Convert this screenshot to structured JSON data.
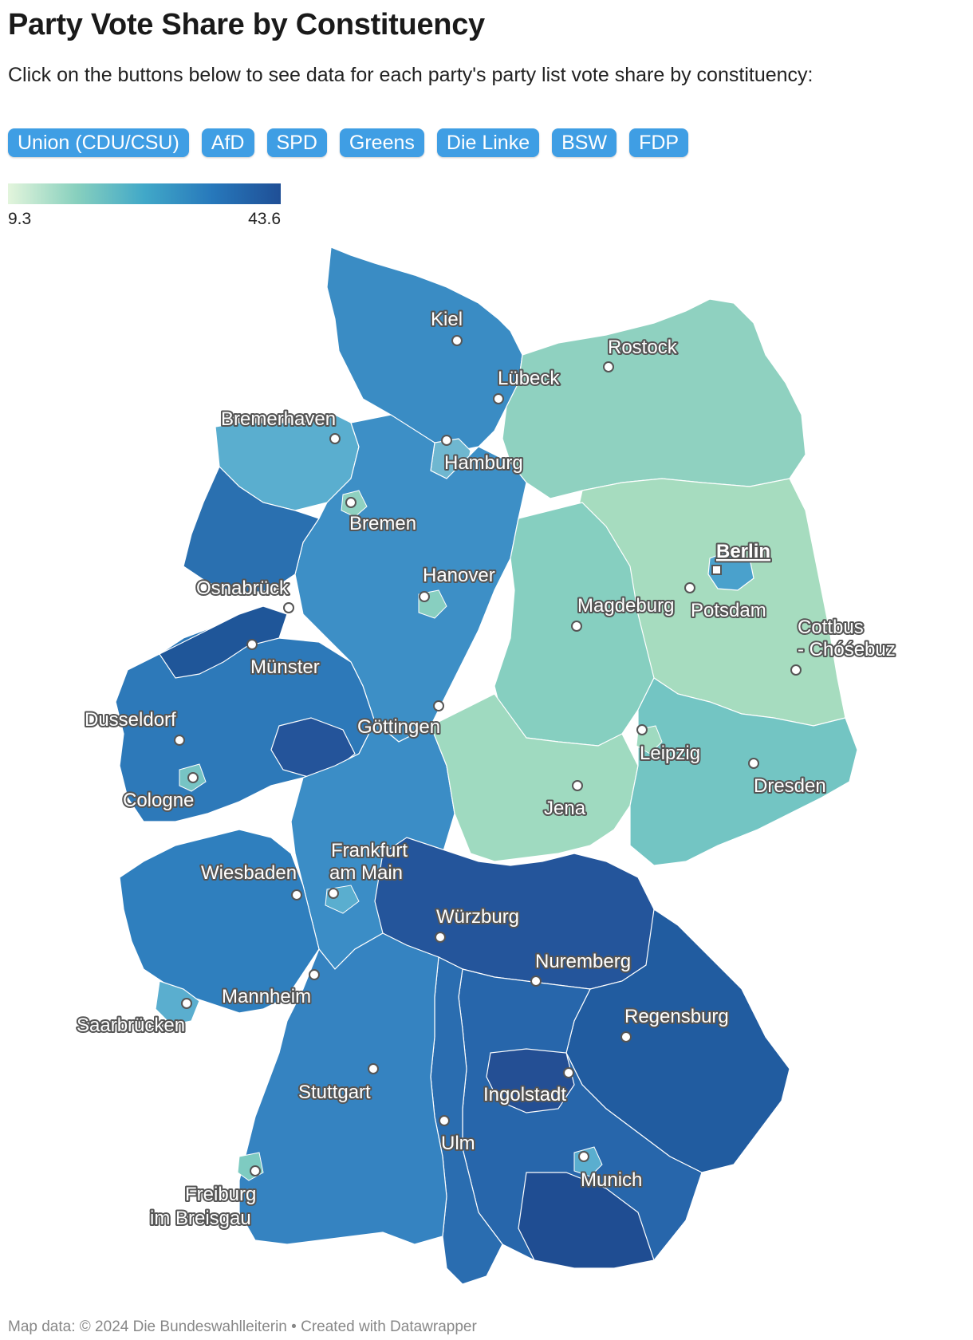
{
  "header": {
    "title": "Party Vote Share by Constituency",
    "subtitle": "Click on the buttons below to see data for each party's party list vote share by constituency:"
  },
  "party_buttons": [
    {
      "label": "Union (CDU/CSU)",
      "active": true
    },
    {
      "label": "AfD"
    },
    {
      "label": "SPD"
    },
    {
      "label": "Greens"
    },
    {
      "label": "Die Linke"
    },
    {
      "label": "BSW"
    },
    {
      "label": "FDP"
    }
  ],
  "legend": {
    "min": "9.3",
    "max": "43.6",
    "colors": [
      "#e3f5dc",
      "#88d0be",
      "#41a8c8",
      "#2778bb",
      "#1f4f96"
    ]
  },
  "map": {
    "cities": [
      {
        "name": "Kiel"
      },
      {
        "name": "Rostock"
      },
      {
        "name": "Lübeck"
      },
      {
        "name": "Bremerhaven"
      },
      {
        "name": "Hamburg"
      },
      {
        "name": "Bremen"
      },
      {
        "name": "Berlin",
        "capital": true
      },
      {
        "name": "Hanover"
      },
      {
        "name": "Osnabrück"
      },
      {
        "name": "Potsdam"
      },
      {
        "name": "Magdeburg"
      },
      {
        "name": "Cottbus"
      },
      {
        "name": "- Chóśebuz"
      },
      {
        "name": "Münster"
      },
      {
        "name": "Dusseldorf"
      },
      {
        "name": "Göttingen"
      },
      {
        "name": "Leipzig"
      },
      {
        "name": "Dresden"
      },
      {
        "name": "Cologne"
      },
      {
        "name": "Jena"
      },
      {
        "name": "Frankfurt"
      },
      {
        "name": "am Main"
      },
      {
        "name": "Wiesbaden"
      },
      {
        "name": "Würzburg"
      },
      {
        "name": "Nuremberg"
      },
      {
        "name": "Mannheim"
      },
      {
        "name": "Regensburg"
      },
      {
        "name": "Saarbrücken"
      },
      {
        "name": "Stuttgart"
      },
      {
        "name": "Ingolstadt"
      },
      {
        "name": "Ulm"
      },
      {
        "name": "Munich"
      },
      {
        "name": "Freiburg"
      },
      {
        "name": "im Breisgau"
      }
    ]
  },
  "footer": {
    "source": "Map data: © 2024 Die Bundeswahlleiterin",
    "credit": "• Created with Datawrapper"
  }
}
